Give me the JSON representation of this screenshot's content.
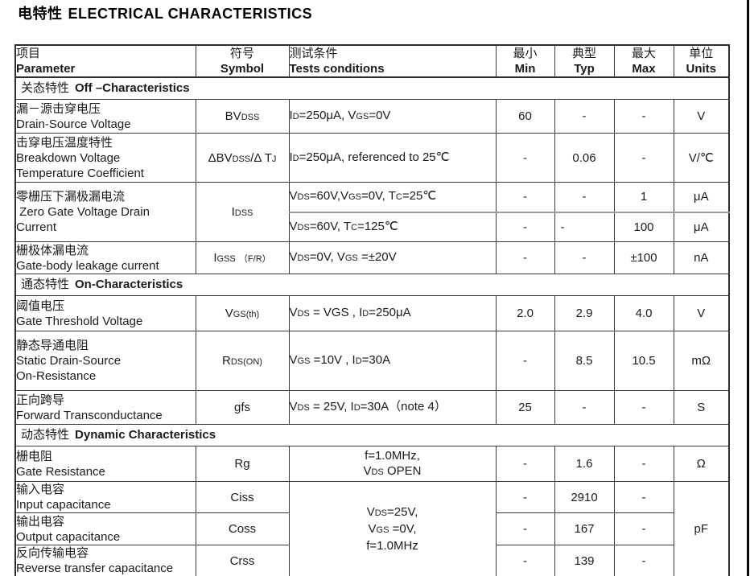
{
  "colors": {
    "ink": "#1a1a1a",
    "border": "#3a3a3a",
    "background": "#ffffff"
  },
  "page": {
    "title_zh": "电特性",
    "title_en": "ELECTRICAL CHARACTERISTICS"
  },
  "table": {
    "header": {
      "parameter_zh": "项目",
      "parameter_en": "Parameter",
      "symbol_zh": "符号",
      "symbol_en": "Symbol",
      "conditions_zh": "测试条件",
      "conditions_en": "Tests conditions",
      "min_zh": "最小",
      "min_en": "Min",
      "typ_zh": "典型",
      "typ_en": "Typ",
      "max_zh": "最大",
      "max_en": "Max",
      "units_zh": "单位",
      "units_en": "Units"
    },
    "sections": {
      "off": {
        "zh": "关态特性",
        "en": "Off –Characteristics"
      },
      "on": {
        "zh": "通态特性",
        "en": "On-Characteristics"
      },
      "dyn": {
        "zh": "动态特性",
        "en": "Dynamic Characteristics"
      }
    },
    "rows": {
      "bvdss": {
        "label_lines": [
          "漏－源击穿电压",
          "Drain-Source Voltage"
        ],
        "symbol": "BV~DSS~",
        "cond": "I~D~=250μA, V~GS~=0V",
        "min": "60",
        "typ": "-",
        "max": "-",
        "unit": "V"
      },
      "dbv": {
        "label_lines": [
          "击穿电压温度特性",
          "Breakdown Voltage",
          "Temperature Coefficient"
        ],
        "symbol": "ΔBV~DSS~/Δ T~J~",
        "cond": "I~D~=250μA, referenced to 25℃",
        "min": "-",
        "typ": "0.06",
        "max": "-",
        "unit": "V/℃"
      },
      "idss": {
        "label_lines": [
          "零栅压下漏极漏电流",
          " Zero Gate Voltage Drain",
          "Current"
        ],
        "symbol": "I~DSS~",
        "sub1": {
          "cond": "V~DS~=60V,V~GS~=0V, T~C~=25℃",
          "min": "-",
          "typ": "-",
          "max": "1",
          "unit": "μA"
        },
        "sub2": {
          "cond": "V~DS~=60V, T~C~=125℃",
          "min": "-",
          "typ": "-",
          "max": "100",
          "unit": "μA"
        }
      },
      "igss": {
        "label_lines": [
          "栅极体漏电流",
          "Gate-body leakage current"
        ],
        "symbol": "I~GSS~ ~（F/R）~",
        "cond": "V~DS~=0V, V~GS~ =±20V",
        "min": "-",
        "typ": "-",
        "max": "±100",
        "unit": "nA"
      },
      "vgsth": {
        "label_lines": [
          "阈值电压",
          "Gate Threshold Voltage"
        ],
        "symbol": "V~GS(th)~",
        "cond": "V~DS~ = VGS , I~D~=250μA",
        "min": "2.0",
        "typ": "2.9",
        "max": "4.0",
        "unit": "V"
      },
      "rdson": {
        "label_lines": [
          "静态导通电阻",
          "Static Drain-Source",
          "On-Resistance"
        ],
        "symbol": "R~DS(ON)~",
        "cond": "V~GS~ =10V , I~D~=30A",
        "min": "-",
        "typ": "8.5",
        "max": "10.5",
        "unit": "mΩ"
      },
      "gfs": {
        "label_lines": [
          "正向跨导",
          "Forward Transconductance"
        ],
        "symbol": "gfs",
        "cond": "V~DS~ = 25V, I~D~=30A（note 4）",
        "min": "25",
        "typ": "-",
        "max": "-",
        "unit": "S"
      },
      "rg": {
        "label_lines": [
          "栅电阻",
          "Gate Resistance"
        ],
        "symbol": "Rg",
        "cond_lines": [
          "f=1.0MHz,",
          "V~DS~ OPEN"
        ],
        "min": "-",
        "typ": "1.6",
        "max": "-",
        "unit": "Ω"
      },
      "cap_shared": {
        "cond_lines": [
          "V~DS~=25V,",
          "V~GS~ =0V,",
          "f=1.0MHz"
        ],
        "unit": "pF"
      },
      "ciss": {
        "label_lines": [
          "输入电容",
          "Input capacitance"
        ],
        "symbol": "Ciss",
        "min": "-",
        "typ": "2910",
        "max": "-"
      },
      "coss": {
        "label_lines": [
          "输出电容",
          "Output capacitance"
        ],
        "symbol": "Coss",
        "min": "-",
        "typ": "167",
        "max": "-"
      },
      "crss": {
        "label_lines": [
          "反向传输电容",
          "Reverse transfer capacitance"
        ],
        "symbol": "Crss",
        "min": "-",
        "typ": "139",
        "max": "-"
      }
    }
  }
}
